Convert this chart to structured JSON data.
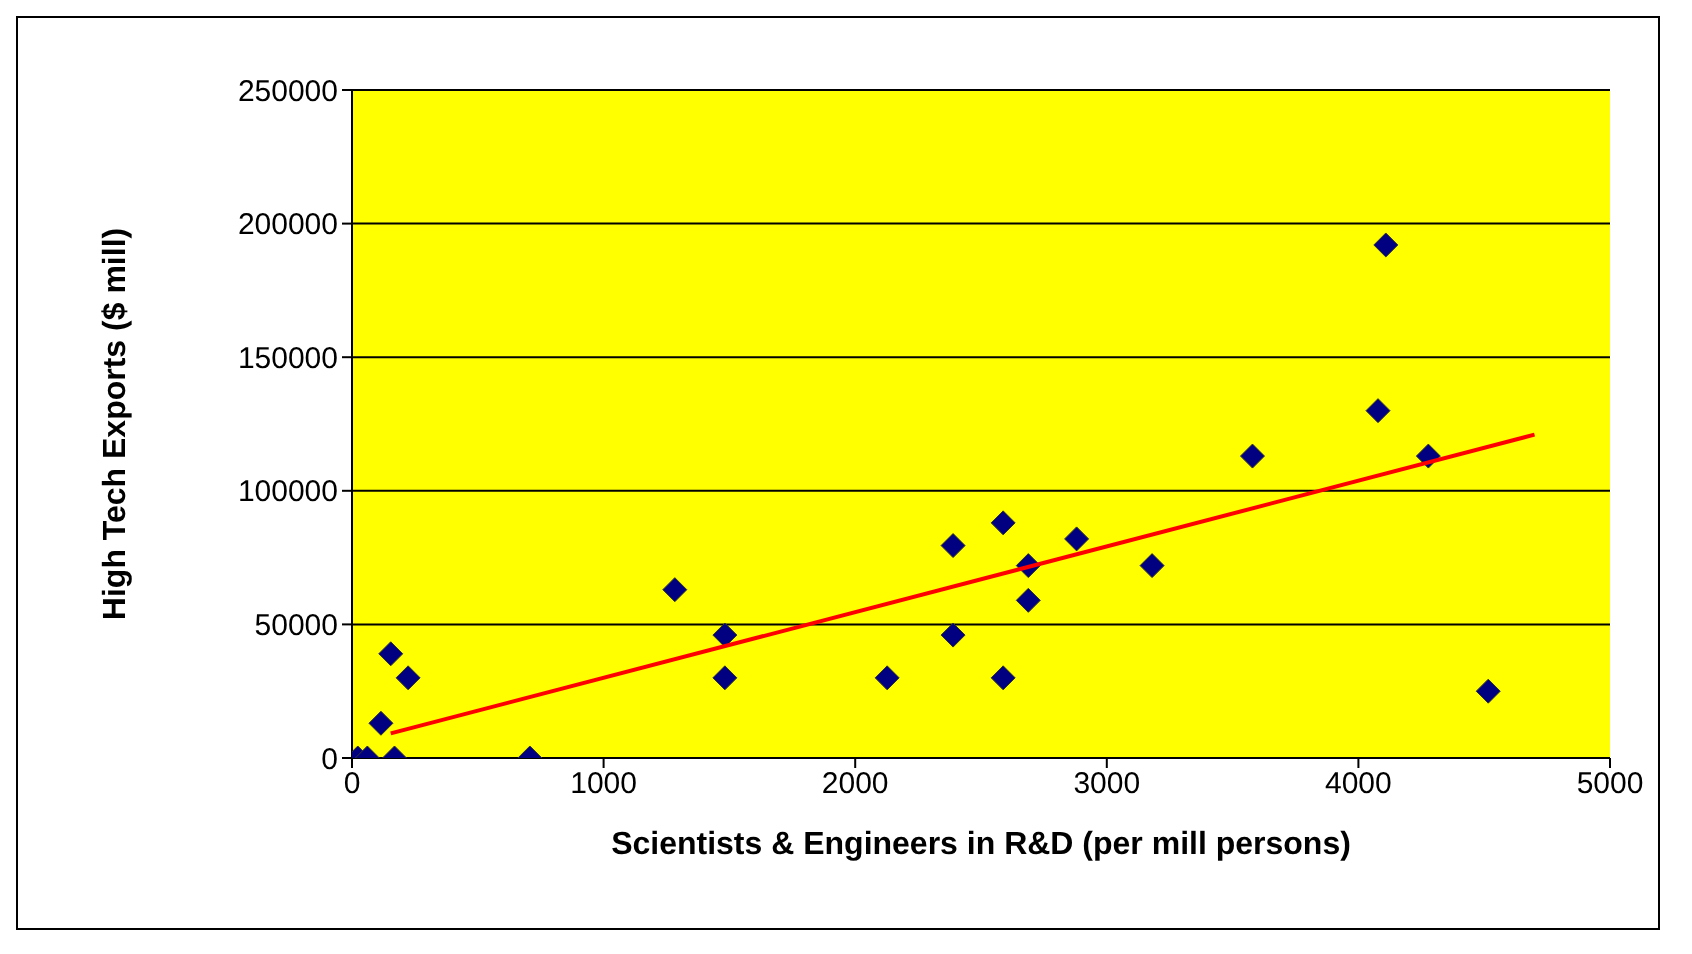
{
  "chart_data": {
    "type": "scatter",
    "xlabel": "Scientists & Engineers in R&D (per mill persons)",
    "ylabel": "High Tech Exports ($ mill)",
    "xlim": [
      0,
      5000
    ],
    "xticks": [
      0,
      1000,
      2000,
      3000,
      4000,
      5000
    ],
    "ylim": [
      0,
      250000
    ],
    "yticks": [
      0,
      50000,
      100000,
      150000,
      200000,
      250000
    ],
    "grid": "y",
    "series": [
      {
        "marker": "diamond",
        "color": "#000080",
        "x": [
          23,
          61,
          169,
          115,
          154,
          223,
          707,
          1283,
          1482,
          1482,
          2389,
          2588,
          2688,
          2688,
          2880,
          3180,
          2389,
          2127,
          2588,
          3579,
          4078,
          4278,
          4109,
          4516
        ],
        "values": [
          0,
          0,
          0,
          13000,
          39000,
          30000,
          0,
          63000,
          46000,
          30000,
          79500,
          88000,
          72000,
          59000,
          82000,
          72000,
          46000,
          30000,
          30000,
          113000,
          130000,
          113000,
          192000,
          25000
        ]
      },
      {
        "type": "line",
        "marker": "none",
        "color": "#ff0000",
        "x": [
          154,
          4700
        ],
        "values": [
          9200,
          121000
        ]
      }
    ]
  }
}
